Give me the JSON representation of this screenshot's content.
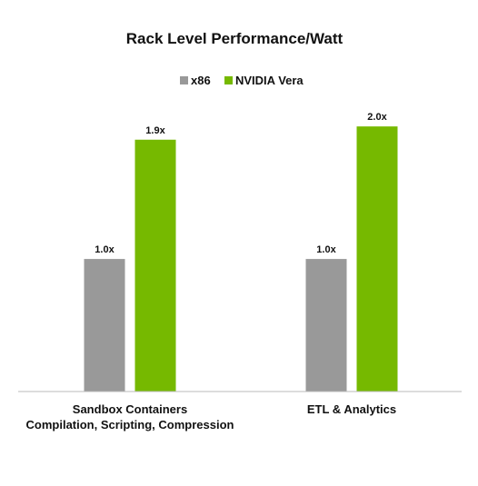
{
  "chart_data": {
    "type": "bar",
    "title": "Rack Level Performance/Watt",
    "xlabel": "",
    "ylabel": "",
    "ylim": [
      0,
      2.2
    ],
    "grid": false,
    "legend_position": "top-center",
    "categories": [
      [
        "Sandbox Containers",
        "Compilation, Scripting, Compression"
      ],
      [
        "ETL & Analytics"
      ]
    ],
    "series": [
      {
        "name": "x86",
        "color": "#999999",
        "values": [
          1.0,
          1.0
        ],
        "labels": [
          "1.0x",
          "1.0x"
        ]
      },
      {
        "name": "NVIDIA Vera",
        "color": "#76b900",
        "values": [
          1.9,
          2.0
        ],
        "labels": [
          "1.9x",
          "2.0x"
        ]
      }
    ]
  }
}
